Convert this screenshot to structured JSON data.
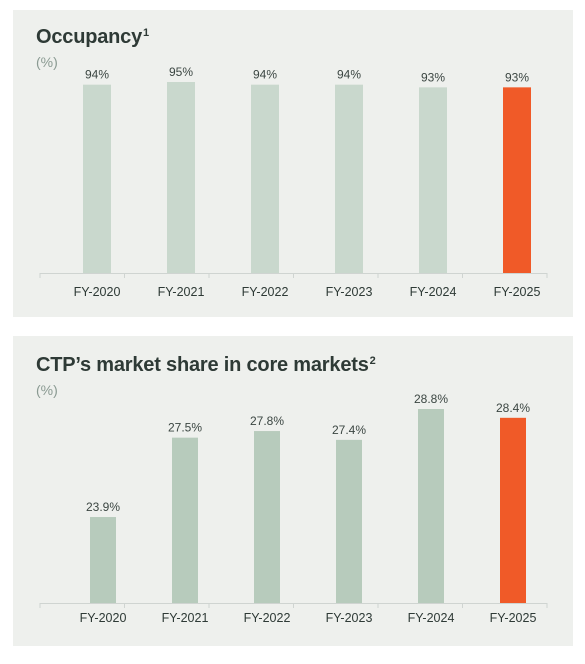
{
  "chart_data": [
    {
      "type": "bar",
      "title": "Occupancy",
      "title_sup": "1",
      "unit": "(%)",
      "categories": [
        "FY-2020",
        "FY-2021",
        "FY-2022",
        "FY-2023",
        "FY-2024",
        "FY-2025"
      ],
      "values": [
        94,
        95,
        94,
        94,
        93,
        93
      ],
      "value_labels": [
        "94%",
        "95%",
        "94%",
        "94%",
        "93%",
        "93%"
      ],
      "bar_color": "#c9d8cd",
      "highlight_color": "#f05a28",
      "highlight_index": 5,
      "axis_color": "#cfd4d1",
      "grid": false
    },
    {
      "type": "bar",
      "title": "CTP’s market share in core markets",
      "title_sup": "2",
      "unit": "(%)",
      "categories": [
        "FY-2020",
        "FY-2021",
        "FY-2022",
        "FY-2023",
        "FY-2024",
        "FY-2025"
      ],
      "values": [
        23.9,
        27.5,
        27.8,
        27.4,
        28.8,
        28.4
      ],
      "value_labels": [
        "23.9%",
        "27.5%",
        "27.8%",
        "27.4%",
        "28.8%",
        "28.4%"
      ],
      "bar_color": "#b7cbbc",
      "highlight_color": "#f05a28",
      "highlight_index": 5,
      "axis_color": "#cfd4d1",
      "grid": false
    }
  ]
}
